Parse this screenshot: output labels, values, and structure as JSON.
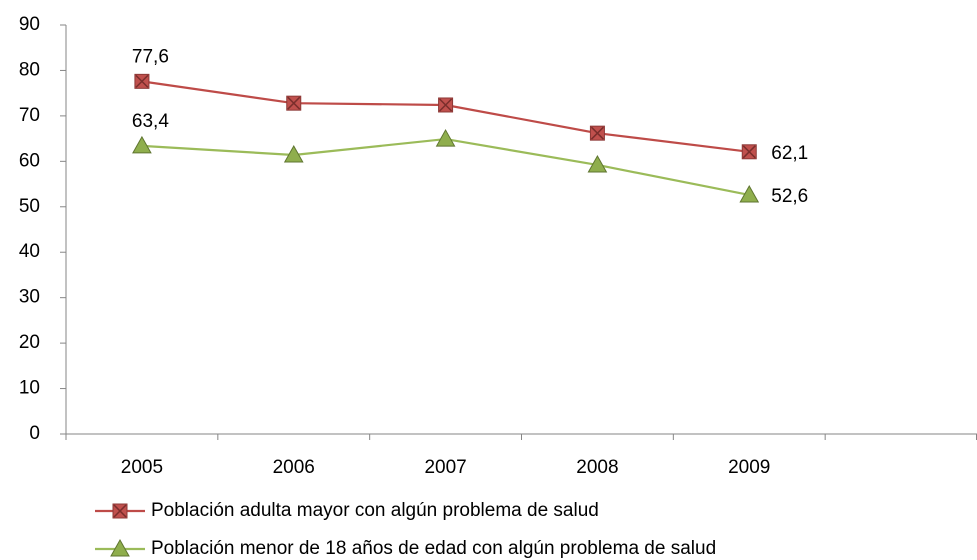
{
  "chart_data": {
    "type": "line",
    "categories": [
      "2005",
      "2006",
      "2007",
      "2008",
      "2009",
      null
    ],
    "series": [
      {
        "name": "Población adulta mayor con algún problema de salud",
        "color": "#be4b48",
        "marker_color": "#c0504d",
        "marker": "square",
        "values": [
          77.6,
          72.8,
          72.4,
          66.2,
          62.1,
          null
        ],
        "value_labels": [
          "77,6",
          null,
          null,
          null,
          "62,1",
          null
        ]
      },
      {
        "name": "Población menor de 18 años de edad con algún problema de salud",
        "color": "#9bbb59",
        "marker_color": "#8fae4d",
        "marker": "triangle",
        "values": [
          63.4,
          61.4,
          64.9,
          59.2,
          52.6,
          null
        ],
        "value_labels": [
          "63,4",
          null,
          null,
          null,
          "52,6",
          null
        ]
      }
    ],
    "ylim": [
      0,
      90
    ],
    "yticks": [
      0,
      10,
      20,
      30,
      40,
      50,
      60,
      70,
      80,
      90
    ],
    "grid": false,
    "legend": "bottom"
  }
}
